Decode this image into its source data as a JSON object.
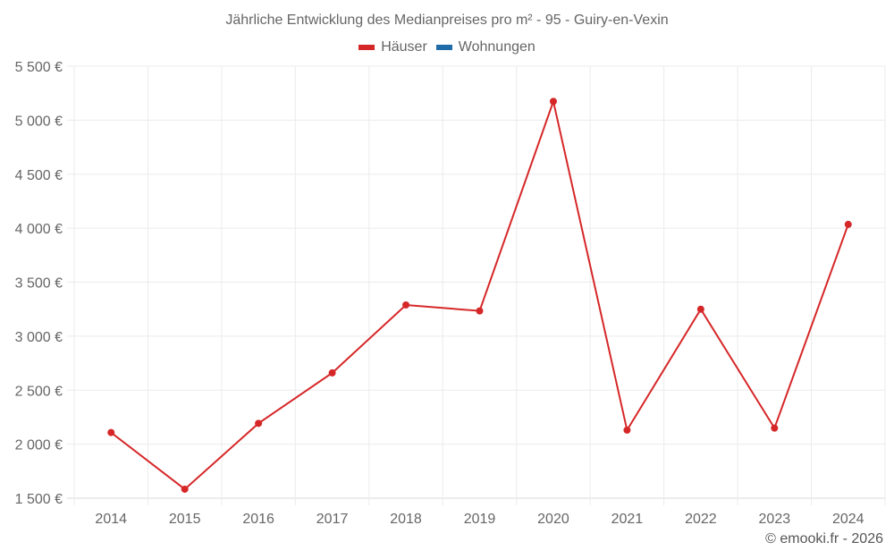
{
  "chart_data": {
    "type": "line",
    "title": "Jährliche Entwicklung des Medianpreises pro m² - 95 - Guiry-en-Vexin",
    "xlabel": "",
    "ylabel": "",
    "categories": [
      "2014",
      "2015",
      "2016",
      "2017",
      "2018",
      "2019",
      "2020",
      "2021",
      "2022",
      "2023",
      "2024"
    ],
    "series": [
      {
        "name": "Häuser",
        "color": "#d62728",
        "values": [
          2108,
          1583,
          2193,
          2660,
          3289,
          3234,
          5174,
          2130,
          3250,
          2149,
          4035
        ]
      },
      {
        "name": "Wohnungen",
        "color": "#1f6ca8",
        "values": []
      }
    ],
    "ylim": [
      1500,
      5500
    ],
    "yticks": [
      1500,
      2000,
      2500,
      3000,
      3500,
      4000,
      4500,
      5000,
      5500
    ],
    "ytick_labels": [
      "1 500 €",
      "2 000 €",
      "2 500 €",
      "3 000 €",
      "3 500 €",
      "4 000 €",
      "4 500 €",
      "5 000 €",
      "5 500 €"
    ],
    "grid": true,
    "legend_position": "top"
  },
  "legend": [
    {
      "label": "Häuser",
      "color": "#d62728"
    },
    {
      "label": "Wohnungen",
      "color": "#1f6ca8"
    }
  ],
  "credit": "© emooki.fr - 2026"
}
